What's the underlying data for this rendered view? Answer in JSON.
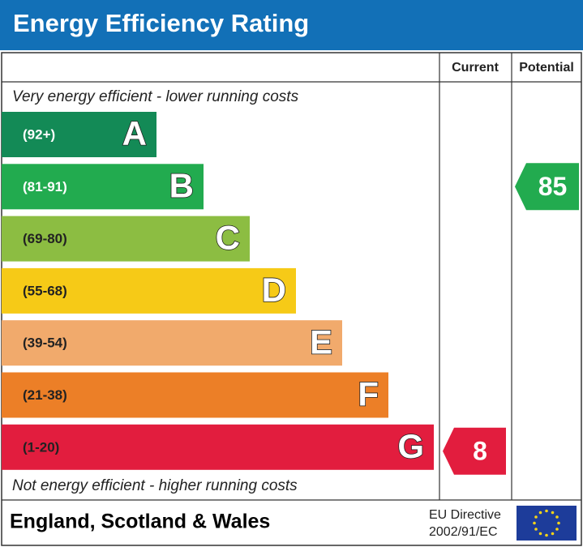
{
  "header": {
    "title": "Energy Efficiency Rating",
    "current_label": "Current",
    "potential_label": "Potential"
  },
  "top_note": "Very energy efficient - lower running costs",
  "bottom_note": "Not energy efficient - higher running costs",
  "bands": [
    {
      "range": "(92+)",
      "letter": "A",
      "color": "#138a56"
    },
    {
      "range": "(81-91)",
      "letter": "B",
      "color": "#22ab4f"
    },
    {
      "range": "(69-80)",
      "letter": "C",
      "color": "#8cbd42"
    },
    {
      "range": "(55-68)",
      "letter": "D",
      "color": "#f6ca17"
    },
    {
      "range": "(39-54)",
      "letter": "E",
      "color": "#f1aa6c"
    },
    {
      "range": "(21-38)",
      "letter": "F",
      "color": "#ec7f27"
    },
    {
      "range": "(1-20)",
      "letter": "G",
      "color": "#e21d3e"
    }
  ],
  "current": 8,
  "potential": 85,
  "footer": {
    "region": "England, Scotland & Wales",
    "directive_line1": "EU Directive",
    "directive_line2": "2002/91/EC"
  }
}
